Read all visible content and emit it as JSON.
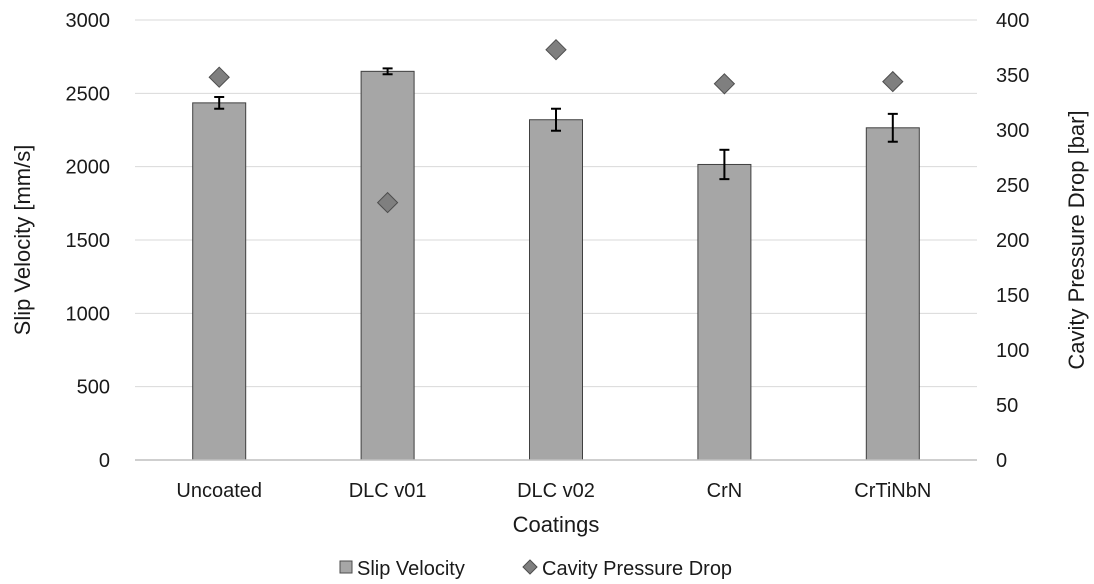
{
  "chart_data": {
    "type": "bar",
    "xlabel": "Coatings",
    "ylabel": "Slip Velocity [mm/s]",
    "y2label": "Cavity Pressure Drop [bar]",
    "categories": [
      "Uncoated",
      "DLC v01",
      "DLC v02",
      "CrN",
      "CrTiNbN"
    ],
    "ylim": [
      0,
      3000
    ],
    "yticks": [
      0,
      500,
      1000,
      1500,
      2000,
      2500,
      3000
    ],
    "y2lim": [
      0,
      400
    ],
    "y2ticks": [
      0,
      50,
      100,
      150,
      200,
      250,
      300,
      350,
      400
    ],
    "grid": true,
    "legend_position": "bottom",
    "series": [
      {
        "name": "Slip Velocity",
        "type": "bar",
        "axis": "left",
        "color": "#a6a6a6",
        "values": [
          2435,
          2650,
          2320,
          2015,
          2265
        ],
        "errors": [
          40,
          20,
          75,
          100,
          95
        ]
      },
      {
        "name": "Cavity Pressure Drop",
        "type": "scatter",
        "marker": "diamond",
        "axis": "right",
        "color": "#7f7f7f",
        "values": [
          348,
          234,
          373,
          342,
          344
        ]
      }
    ]
  }
}
